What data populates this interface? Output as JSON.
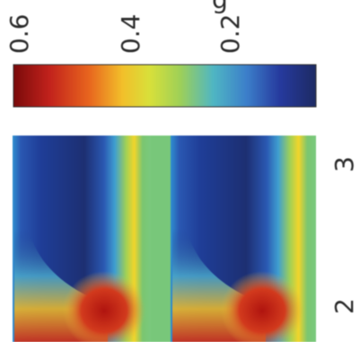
{
  "chart_data": {
    "type": "heatmap",
    "colorbar": {
      "tick_labels": [
        "0.6",
        "0.4",
        "0.2"
      ],
      "range": [
        0.6,
        0.1
      ],
      "colormap": [
        "#7a0a0a",
        "#c2221c",
        "#e8651e",
        "#f2bf2a",
        "#d8e03a",
        "#9fd057",
        "#4fb6c3",
        "#3c7fca",
        "#263a9e",
        "#1d2a63"
      ]
    },
    "x_tick_labels": [
      "2",
      "3"
    ],
    "cut_label": "g",
    "notes_visible": "heatmap panel shows repeating bands: dark blue regions at top, yellow/red toward bottom"
  }
}
